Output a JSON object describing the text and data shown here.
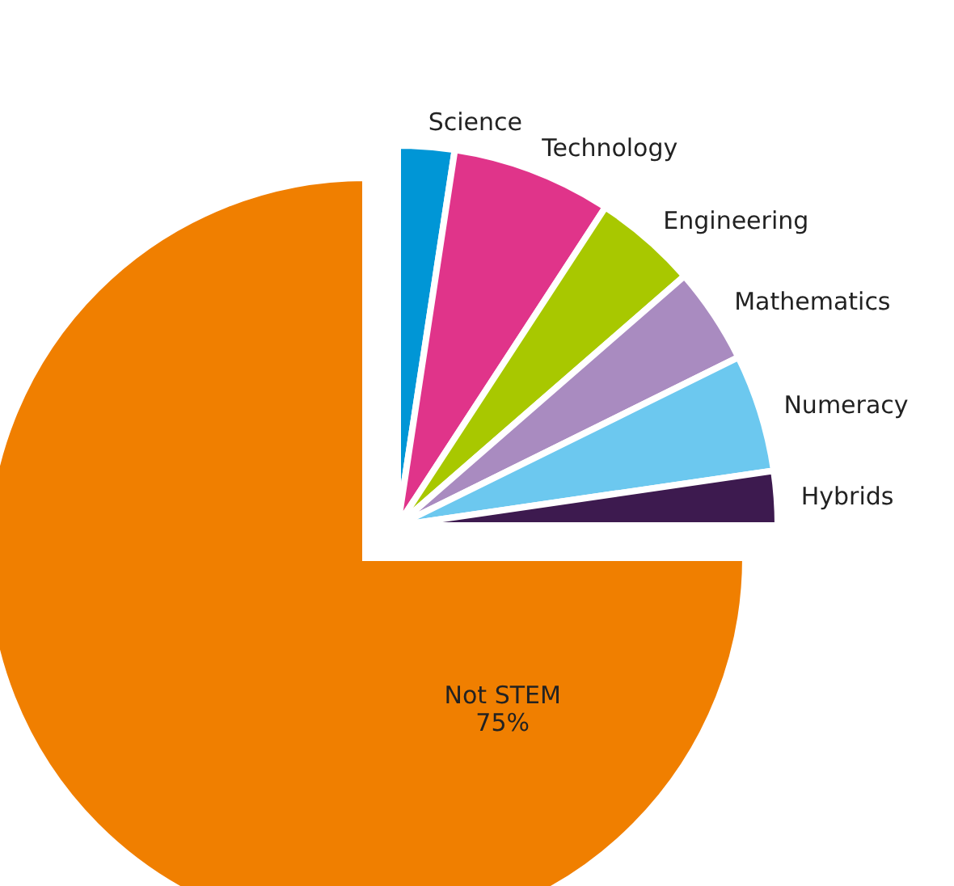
{
  "chart_data": {
    "type": "pie",
    "categories": [
      "Science",
      "Technology",
      "Engineering",
      "Mathematics",
      "Numeracy",
      "Hybrids",
      "Not STEM"
    ],
    "values": [
      2.4,
      6.8,
      4.4,
      4.1,
      5.0,
      2.3,
      75
    ],
    "colors": [
      "#0096d6",
      "#e0348a",
      "#a8c800",
      "#a98bc0",
      "#6cc8ef",
      "#3d1a4f",
      "#f07f00"
    ],
    "value_labels": [
      null,
      null,
      null,
      null,
      null,
      null,
      "75%"
    ]
  }
}
